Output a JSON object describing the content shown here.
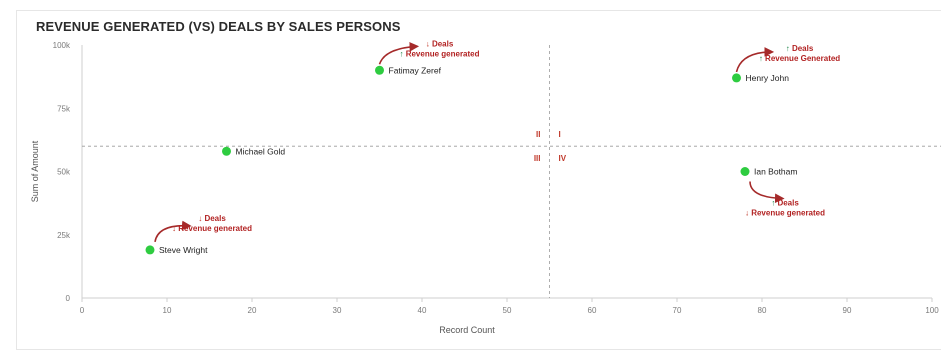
{
  "chart_data": {
    "type": "scatter",
    "title": "REVENUE GENERATED (VS) DEALS BY SALES PERSONS",
    "xlabel": "Record Count",
    "ylabel": "Sum of Amount",
    "xlim": [
      0,
      100
    ],
    "ylim": [
      0,
      100000
    ],
    "x_ticks": [
      "0",
      "10",
      "20",
      "30",
      "40",
      "50",
      "60",
      "70",
      "80",
      "90",
      "100"
    ],
    "y_ticks": [
      "0",
      "25k",
      "50k",
      "75k",
      "100k"
    ],
    "grid": false,
    "point_color": "#2ecc40",
    "reference_lines": {
      "x": 55,
      "y": 60000
    },
    "points": [
      {
        "name": "Fatimay Zeref",
        "x": 35,
        "y": 90000
      },
      {
        "name": "Henry John",
        "x": 77,
        "y": 87000
      },
      {
        "name": "Michael Gold",
        "x": 17,
        "y": 58000
      },
      {
        "name": "Ian Botham",
        "x": 78,
        "y": 50000
      },
      {
        "name": "Steve Wright",
        "x": 8,
        "y": 19000
      }
    ],
    "quadrant_labels": [
      "II",
      "I",
      "III",
      "IV"
    ],
    "annotations": [
      {
        "point": "Fatimay Zeref",
        "lines": [
          {
            "arrow": "down",
            "color": "#c0392b",
            "text": "Deals"
          },
          {
            "arrow": "up",
            "color": "#1e8449",
            "text": "Revenue generated"
          }
        ]
      },
      {
        "point": "Henry John",
        "lines": [
          {
            "arrow": "up",
            "color": "#1e8449",
            "text": "Deals"
          },
          {
            "arrow": "up",
            "color": "#1e8449",
            "text": "Revenue Generated"
          }
        ]
      },
      {
        "point": "Ian Botham",
        "lines": [
          {
            "arrow": "up",
            "color": "#1e8449",
            "text": "Deals"
          },
          {
            "arrow": "down",
            "color": "#c0392b",
            "text": "Revenue generated"
          }
        ]
      },
      {
        "point": "Steve Wright",
        "lines": [
          {
            "arrow": "down",
            "color": "#c0392b",
            "text": "Deals"
          },
          {
            "arrow": "down",
            "color": "#c0392b",
            "text": "Revenue generated"
          }
        ]
      }
    ]
  }
}
